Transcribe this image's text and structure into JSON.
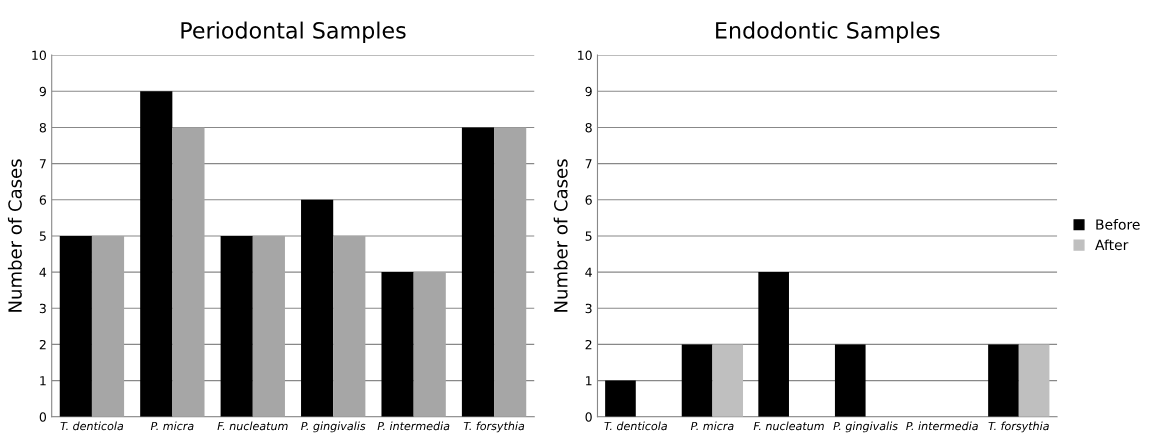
{
  "chart_data": [
    {
      "type": "bar",
      "title": "Periodontal Samples",
      "ylabel": "Number of Cases",
      "categories": [
        "T. denticola",
        "P. micra",
        "F. nucleatum",
        "P. gingivalis",
        "P. intermedia",
        "T. forsythia"
      ],
      "series": [
        {
          "color": "#000000",
          "values": [
            5,
            9,
            5,
            6,
            4,
            8
          ]
        },
        {
          "color": "#a6a6a6",
          "values": [
            5,
            8,
            5,
            5,
            4,
            8
          ]
        }
      ],
      "ylim": [
        0,
        10
      ],
      "yticks": [
        0,
        1,
        2,
        3,
        4,
        5,
        6,
        7,
        8,
        9,
        10
      ],
      "grid": "y",
      "legend": false
    },
    {
      "type": "bar",
      "title": "Endodontic Samples",
      "ylabel": "Number of Cases",
      "categories": [
        "T. denticola",
        "P. micra",
        "F. nucleatum",
        "P. gingivalis",
        "P. intermedia",
        "T. forsythia"
      ],
      "series": [
        {
          "name": "Before",
          "color": "#000000",
          "values": [
            1,
            2,
            4,
            2,
            0,
            2
          ]
        },
        {
          "name": "After",
          "color": "#bfbfbf",
          "values": [
            0,
            2,
            0,
            0,
            0,
            2
          ]
        }
      ],
      "ylim": [
        0,
        10
      ],
      "yticks": [
        0,
        1,
        2,
        3,
        4,
        5,
        6,
        7,
        8,
        9,
        10
      ],
      "grid": "y",
      "legend": "right"
    }
  ]
}
